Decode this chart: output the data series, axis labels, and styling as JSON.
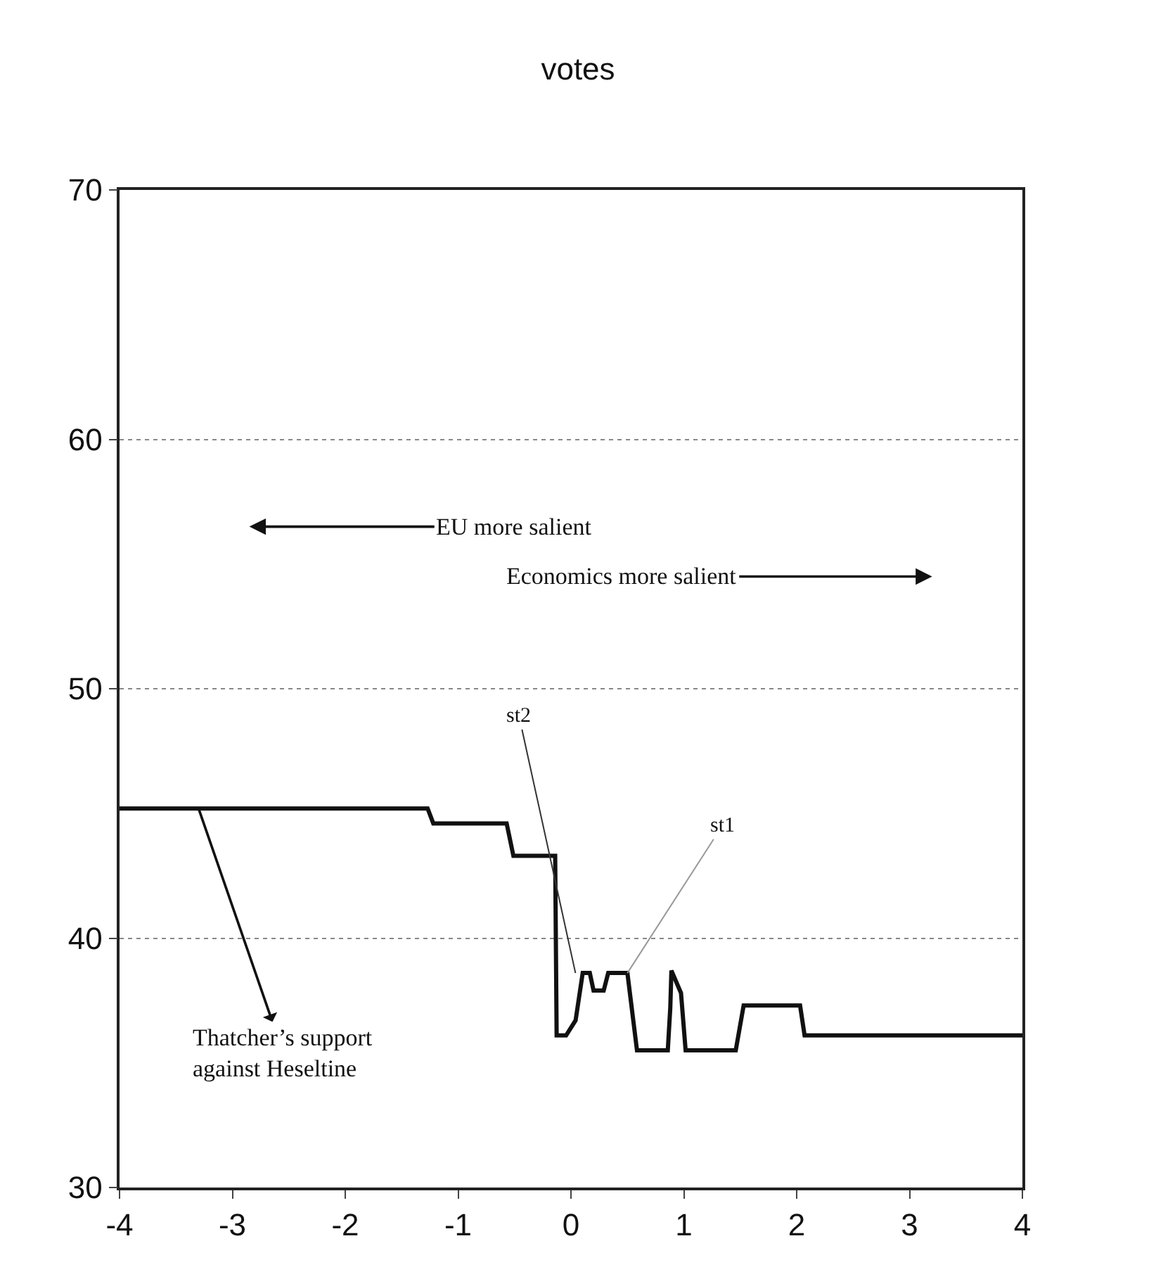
{
  "chart_data": {
    "type": "line",
    "title": "votes",
    "x": [
      -4,
      -1.27,
      -1.22,
      -0.57,
      -0.51,
      -0.14,
      -0.127,
      -0.043,
      0.041,
      0.104,
      0.167,
      0.2,
      0.29,
      0.33,
      0.5,
      0.585,
      0.858,
      0.88,
      0.89,
      0.975,
      1.016,
      1.46,
      1.53,
      2.03,
      2.07,
      4
    ],
    "series": [
      {
        "color": "#111111",
        "values": [
          45.2,
          45.2,
          44.6,
          44.6,
          43.3,
          43.3,
          36.1,
          36.1,
          36.7,
          38.6,
          38.6,
          37.9,
          37.9,
          38.6,
          38.6,
          35.5,
          35.5,
          37.2,
          38.7,
          37.8,
          35.5,
          35.5,
          37.3,
          37.3,
          36.1,
          36.1
        ]
      }
    ],
    "xlim": [
      -4,
      4
    ],
    "xticks": [
      -4,
      -3,
      -2,
      -1,
      0,
      1,
      2,
      3,
      4
    ],
    "ylim": [
      30,
      70
    ],
    "yticks": [
      30,
      40,
      50,
      60,
      70
    ],
    "grid": "y",
    "marker": "none",
    "line_style": "solid",
    "legend": false,
    "annotations": [
      "EU more salient",
      "Economics more salient",
      {
        "text": "st2",
        "x": 0.04,
        "y": 38.6
      },
      {
        "text": "st1",
        "x": 0.5,
        "y": 38.6
      },
      {
        "text": "Thatcher’s support\nagainst Heseltine",
        "x": -3.3,
        "y": 45.2
      }
    ]
  }
}
